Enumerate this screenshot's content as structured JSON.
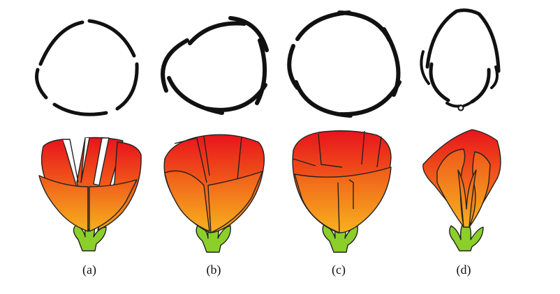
{
  "panels": [
    {
      "id": "a",
      "label": "(a)"
    },
    {
      "id": "b",
      "label": "(b)"
    },
    {
      "id": "c",
      "label": "(c)"
    },
    {
      "id": "d",
      "label": "(d)"
    }
  ],
  "colors": {
    "petal_top": "#e8141c",
    "petal_mid": "#f0541a",
    "petal_bottom": "#f6a21a",
    "sepal": "#8ccf2a",
    "outline": "#1a1a1a",
    "background": "#ffffff"
  }
}
